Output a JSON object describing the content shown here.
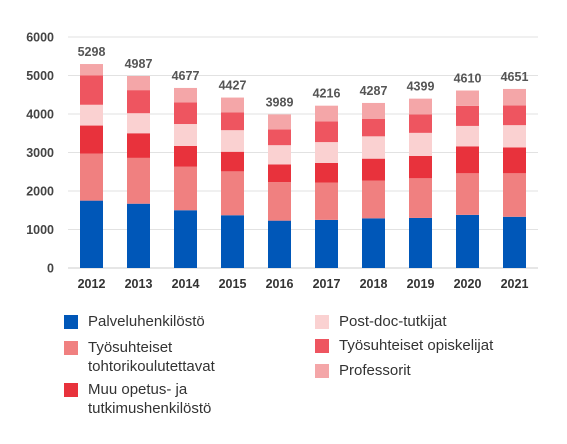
{
  "chart_data": {
    "type": "bar",
    "stacked": true,
    "categories": [
      "2012",
      "2013",
      "2014",
      "2015",
      "2016",
      "2017",
      "2018",
      "2019",
      "2020",
      "2021"
    ],
    "totals": [
      5298,
      4987,
      4677,
      4427,
      3989,
      4216,
      4287,
      4399,
      4610,
      4651
    ],
    "series": [
      {
        "name": "Palveluhenkilöstö",
        "color": "#0057b8",
        "values": [
          1750,
          1670,
          1500,
          1370,
          1230,
          1250,
          1290,
          1300,
          1380,
          1330
        ]
      },
      {
        "name": "Työsuhteiset tohtorikoulutettavat",
        "color": "#f08080",
        "values": [
          1220,
          1190,
          1130,
          1140,
          1000,
          970,
          980,
          1030,
          1080,
          1130
        ]
      },
      {
        "name": "Muu opetus- ja tutkimushenkilöstö",
        "color": "#e8323c",
        "values": [
          730,
          640,
          540,
          510,
          460,
          510,
          570,
          580,
          700,
          670
        ]
      },
      {
        "name": "Post-doc-tutkijat",
        "color": "#fad1d1",
        "values": [
          540,
          520,
          570,
          560,
          500,
          540,
          580,
          600,
          530,
          580
        ]
      },
      {
        "name": "Työsuhteiset opiskelijat",
        "color": "#ee5560",
        "values": [
          760,
          600,
          560,
          460,
          410,
          540,
          450,
          480,
          520,
          510
        ]
      },
      {
        "name": "Professorit",
        "color": "#f4a6a8",
        "values": [
          298,
          367,
          377,
          387,
          389,
          406,
          417,
          409,
          400,
          431
        ]
      }
    ],
    "ylim": [
      0,
      6000
    ],
    "yticks": [
      0,
      1000,
      2000,
      3000,
      4000,
      5000,
      6000
    ],
    "grid": true,
    "legend_position": "bottom"
  },
  "legend": {
    "items": [
      {
        "label": "Palveluhenkilöstö",
        "color": "#0057b8"
      },
      {
        "label": "Työsuhteiset tohtorikoulutettavat",
        "color": "#f08080"
      },
      {
        "label": "Muu opetus- ja tutkimushenkilöstö",
        "color": "#e8323c"
      },
      {
        "label": "Post-doc-tutkijat",
        "color": "#fad1d1"
      },
      {
        "label": "Työsuhteiset opiskelijat",
        "color": "#ee5560"
      },
      {
        "label": "Professorit",
        "color": "#f4a6a8"
      }
    ]
  }
}
